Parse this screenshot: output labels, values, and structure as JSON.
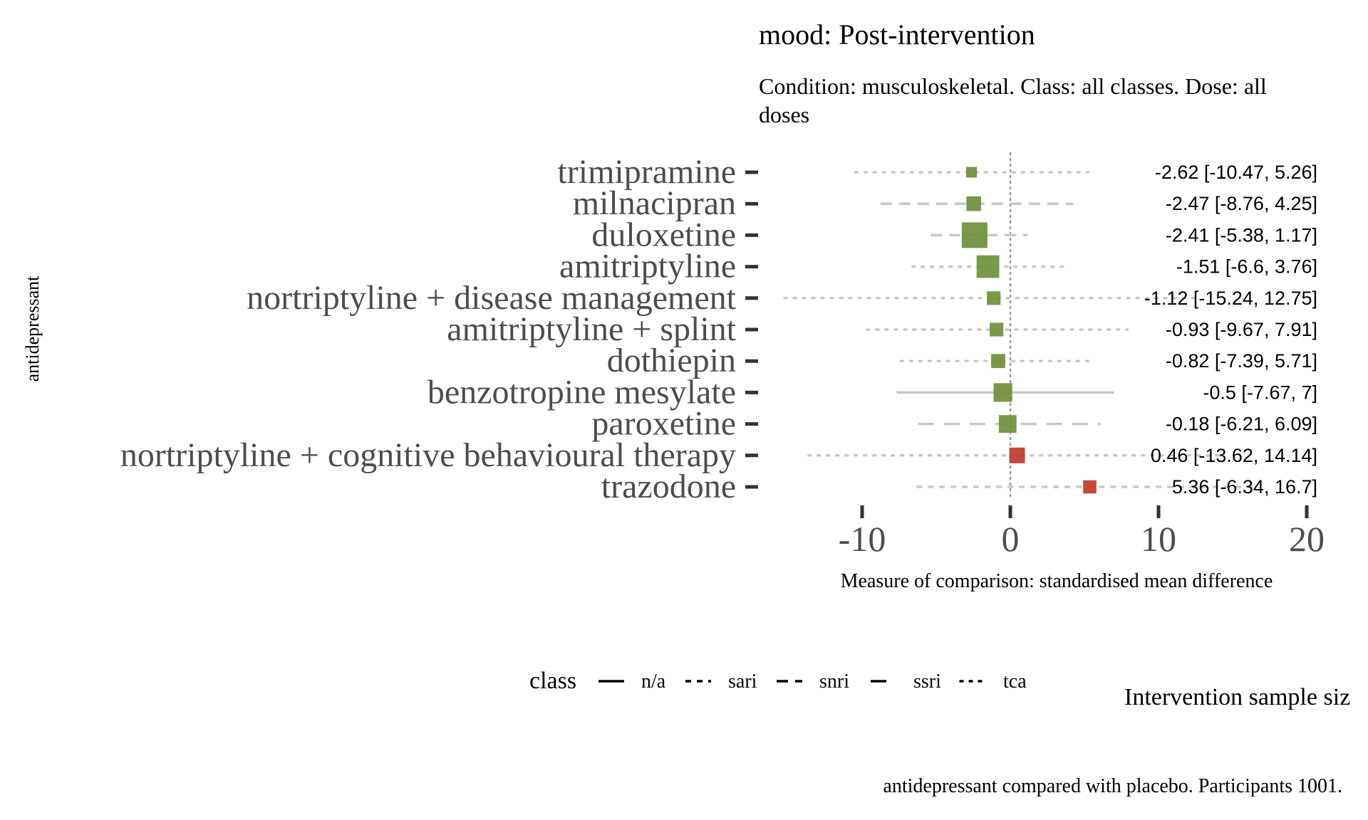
{
  "chart_data": {
    "type": "forest",
    "title": "mood: Post-intervention",
    "subtitle": "Condition: musculoskeletal. Class: all classes. Dose: all doses",
    "xlabel": "Measure of comparison: standardised mean difference",
    "ylabel": "antidepressant",
    "xlim": [
      -13,
      22
    ],
    "x_ticks": [
      -10,
      0,
      10,
      20
    ],
    "reference_line": 0,
    "caption": "antidepressant compared with placebo. Participants 1001.",
    "size_legend_title": "Intervention sample siz",
    "class_legend": {
      "title": "class",
      "entries": [
        {
          "label": "n/a",
          "line": "solid"
        },
        {
          "label": "sari",
          "line": "dashed-short"
        },
        {
          "label": "snri",
          "line": "dashed"
        },
        {
          "label": "ssri",
          "line": "longdash"
        },
        {
          "label": "tca",
          "line": "dotted"
        }
      ]
    },
    "colors": {
      "favours": "#6e8f3a",
      "against": "#c0392b",
      "interval": "#c8c8c8",
      "axis": "#333333"
    },
    "rows": [
      {
        "name": "trimipramine",
        "estimate": -2.62,
        "lower": -10.47,
        "upper": 5.26,
        "label": "-2.62 [-10.47, 5.26]",
        "class": "tca",
        "size": 0.25,
        "color": "favours"
      },
      {
        "name": "milnacipran",
        "estimate": -2.47,
        "lower": -8.76,
        "upper": 4.25,
        "label": "-2.47 [-8.76, 4.25]",
        "class": "snri",
        "size": 0.45,
        "color": "favours"
      },
      {
        "name": "duloxetine",
        "estimate": -2.41,
        "lower": -5.38,
        "upper": 1.17,
        "label": "-2.41 [-5.38, 1.17]",
        "class": "snri",
        "size": 1.0,
        "color": "favours"
      },
      {
        "name": "amitriptyline",
        "estimate": -1.51,
        "lower": -6.6,
        "upper": 3.76,
        "label": "-1.51 [-6.6, 3.76]",
        "class": "tca",
        "size": 0.85,
        "color": "favours"
      },
      {
        "name": "nortriptyline + disease management",
        "estimate": -1.12,
        "lower": -15.24,
        "upper": 12.75,
        "label": "-1.12 [-15.24, 12.75]",
        "class": "tca",
        "size": 0.4,
        "color": "favours"
      },
      {
        "name": "amitriptyline + splint",
        "estimate": -0.93,
        "lower": -9.67,
        "upper": 7.91,
        "label": "-0.93 [-9.67, 7.91]",
        "class": "tca",
        "size": 0.4,
        "color": "favours"
      },
      {
        "name": "dothiepin",
        "estimate": -0.82,
        "lower": -7.39,
        "upper": 5.71,
        "label": "-0.82 [-7.39, 5.71]",
        "class": "tca",
        "size": 0.42,
        "color": "favours"
      },
      {
        "name": "benzotropine mesylate",
        "estimate": -0.5,
        "lower": -7.67,
        "upper": 7,
        "label": "-0.5 [-7.67, 7]",
        "class": "n/a",
        "size": 0.65,
        "color": "favours"
      },
      {
        "name": "paroxetine",
        "estimate": -0.18,
        "lower": -6.21,
        "upper": 6.09,
        "label": "-0.18 [-6.21, 6.09]",
        "class": "ssri",
        "size": 0.6,
        "color": "favours"
      },
      {
        "name": "nortriptyline + cognitive behavioural therapy",
        "estimate": 0.46,
        "lower": -13.62,
        "upper": 14.14,
        "label": "0.46 [-13.62, 14.14]",
        "class": "tca",
        "size": 0.5,
        "color": "against"
      },
      {
        "name": "trazodone",
        "estimate": 5.36,
        "lower": -6.34,
        "upper": 16.7,
        "label": "5.36 [-6.34, 16.7]",
        "class": "sari",
        "size": 0.38,
        "color": "against"
      }
    ]
  }
}
